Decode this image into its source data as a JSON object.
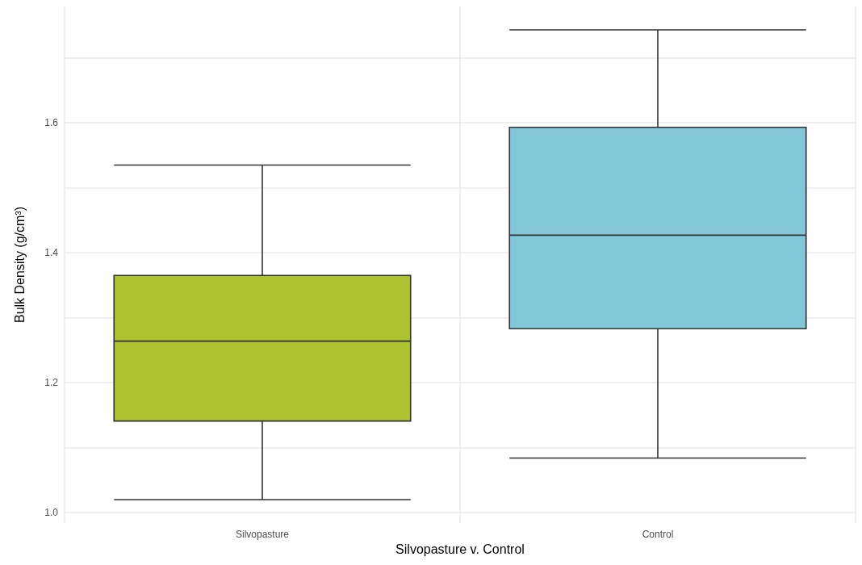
{
  "chart_data": {
    "type": "box",
    "xlabel": "Silvopasture v. Control",
    "ylabel": "Bulk Density (g/cm³)",
    "categories": [
      "Silvopasture",
      "Control"
    ],
    "colors": [
      "#acc32f",
      "#82c6d8"
    ],
    "boxes": [
      {
        "low": 1.02,
        "q1": 1.141,
        "median": 1.264,
        "q3": 1.365,
        "high": 1.535
      },
      {
        "low": 1.084,
        "q1": 1.283,
        "median": 1.427,
        "q3": 1.593,
        "high": 1.743
      }
    ],
    "ylim": [
      0.984,
      1.779
    ],
    "yticks": [
      {
        "value": 1.0,
        "label": "1.0"
      },
      {
        "value": 1.1,
        "label": null
      },
      {
        "value": 1.2,
        "label": "1.2"
      },
      {
        "value": 1.3,
        "label": null
      },
      {
        "value": 1.4,
        "label": "1.4"
      },
      {
        "value": 1.5,
        "label": null
      },
      {
        "value": 1.6,
        "label": "1.6"
      },
      {
        "value": 1.7,
        "label": null
      }
    ],
    "grid": true
  }
}
